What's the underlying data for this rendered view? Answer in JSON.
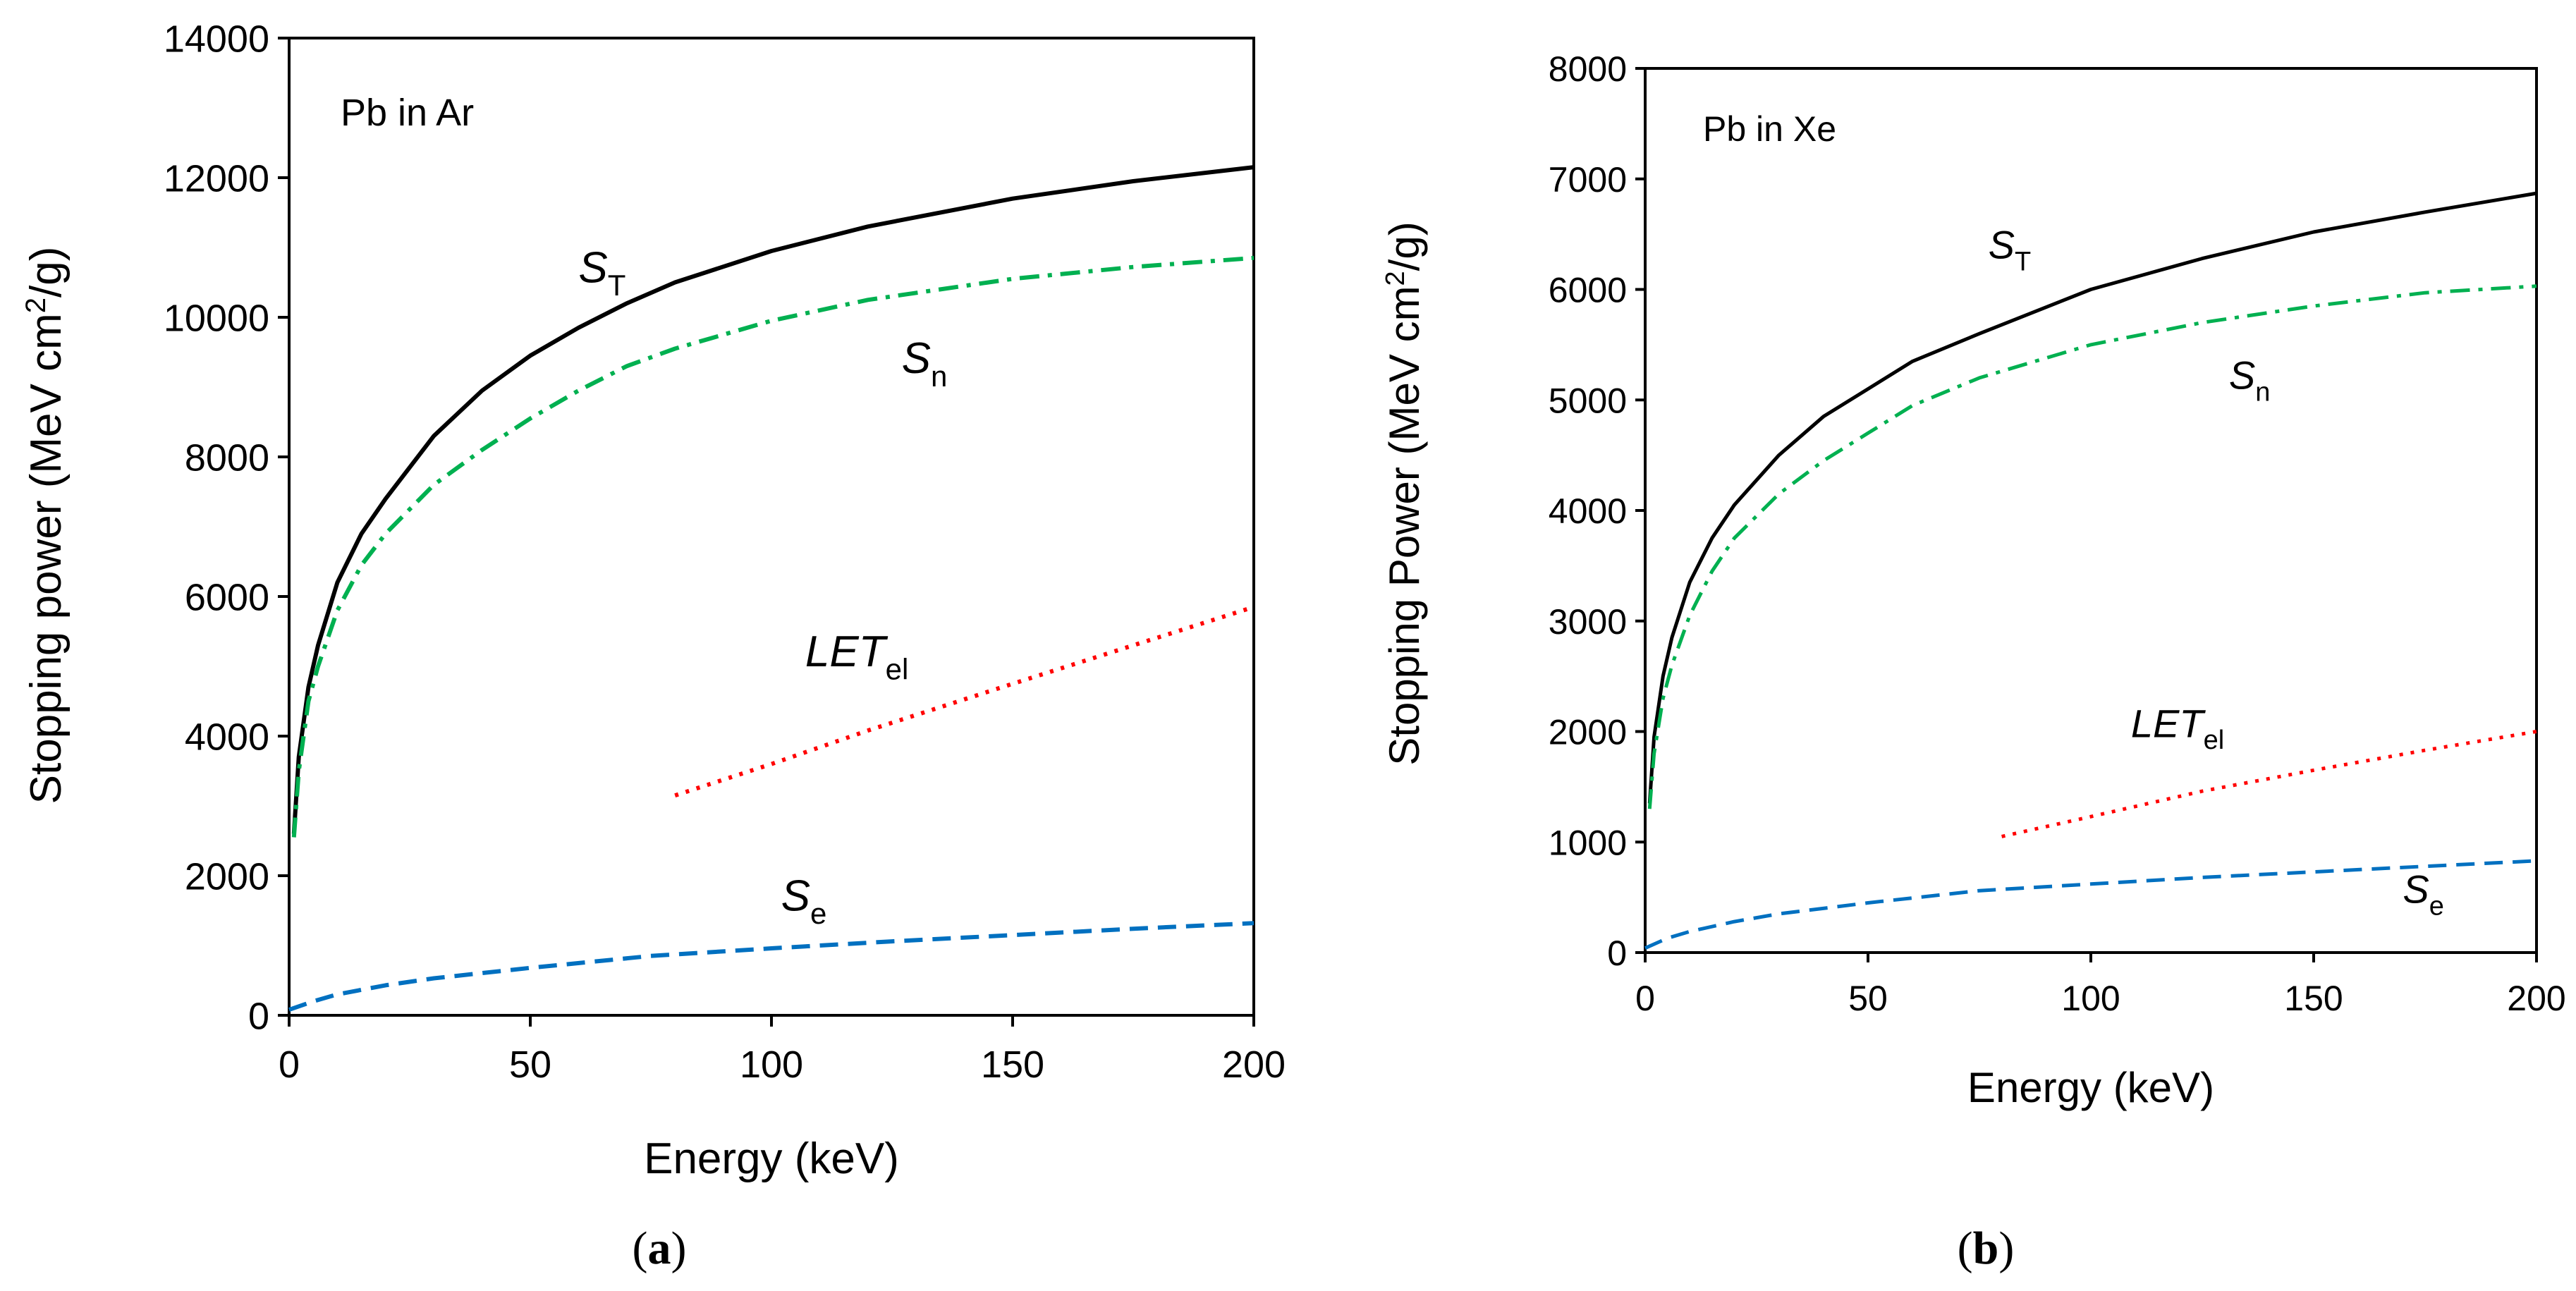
{
  "chart_data": [
    {
      "type": "line",
      "panel_label": "(a)",
      "panel_letter": "a",
      "annotation": "Pb in Ar",
      "xlabel": "Energy (keV)",
      "ylabel": "Stopping power (MeV cm²/g)",
      "ylabel_parts": {
        "before": "Stopping power (MeV cm",
        "sup": "2",
        "after": "/g)"
      },
      "xlim": [
        0,
        200
      ],
      "ylim": [
        0,
        14000
      ],
      "xticks": [
        0,
        50,
        100,
        150,
        200
      ],
      "xtick_labels": [
        "0",
        "50",
        "100",
        "150",
        "200"
      ],
      "yticks": [
        0,
        2000,
        4000,
        6000,
        8000,
        10000,
        12000,
        14000
      ],
      "ytick_labels": [
        "0",
        "2000",
        "4000",
        "6000",
        "8000",
        "10000",
        "12000",
        "14000"
      ],
      "grid": false,
      "series": [
        {
          "name": "ST",
          "label_main": "S",
          "label_sub": "T",
          "label_italic_main": true,
          "color": "#000000",
          "style": "solid",
          "label_at": [
            60,
            10500
          ],
          "x": [
            1,
            2,
            4,
            6,
            10,
            15,
            20,
            30,
            40,
            50,
            60,
            70,
            80,
            100,
            120,
            150,
            175,
            200
          ],
          "y": [
            2600,
            3700,
            4700,
            5300,
            6200,
            6900,
            7400,
            8300,
            8950,
            9450,
            9850,
            10200,
            10500,
            10950,
            11300,
            11700,
            11950,
            12150
          ]
        },
        {
          "name": "Sn",
          "label_main": "S",
          "label_sub": "n",
          "label_italic_main": true,
          "color": "#00b050",
          "style": "dashdot",
          "label_at": [
            127,
            9200
          ],
          "x": [
            1,
            2,
            4,
            6,
            10,
            15,
            20,
            30,
            40,
            50,
            60,
            70,
            80,
            100,
            120,
            150,
            175,
            200
          ],
          "y": [
            2550,
            3500,
            4500,
            5000,
            5800,
            6450,
            6900,
            7600,
            8100,
            8550,
            8950,
            9300,
            9550,
            9950,
            10250,
            10550,
            10720,
            10850
          ]
        },
        {
          "name": "LETel",
          "label_main": "LET",
          "label_sub": "el",
          "label_italic_main": true,
          "color": "#ff0000",
          "style": "dotted",
          "label_at": [
            107,
            5000
          ],
          "x": [
            80,
            100,
            120,
            150,
            175,
            200
          ],
          "y": [
            3150,
            3600,
            4080,
            4750,
            5300,
            5850
          ]
        },
        {
          "name": "Se",
          "label_main": "S",
          "label_sub": "e",
          "label_italic_main": true,
          "color": "#0070c0",
          "style": "dashed",
          "label_at": [
            102,
            1500
          ],
          "x": [
            0,
            5,
            10,
            20,
            30,
            50,
            75,
            100,
            125,
            150,
            175,
            200
          ],
          "y": [
            80,
            200,
            300,
            430,
            530,
            680,
            850,
            960,
            1060,
            1150,
            1240,
            1320
          ]
        }
      ]
    },
    {
      "type": "line",
      "panel_label": "(b)",
      "panel_letter": "b",
      "annotation": "Pb in Xe",
      "xlabel": "Energy (keV)",
      "ylabel": "Stopping Power (MeV cm²/g)",
      "ylabel_parts": {
        "before": "Stopping Power (MeV cm",
        "sup": "2",
        "after": "/g)"
      },
      "xlim": [
        0,
        200
      ],
      "ylim": [
        0,
        8000
      ],
      "xticks": [
        0,
        50,
        100,
        150,
        200
      ],
      "xtick_labels": [
        "0",
        "50",
        "100",
        "150",
        "200"
      ],
      "yticks": [
        0,
        1000,
        2000,
        3000,
        4000,
        5000,
        6000,
        7000,
        8000
      ],
      "ytick_labels": [
        "0",
        "1000",
        "2000",
        "3000",
        "4000",
        "5000",
        "6000",
        "7000",
        "8000"
      ],
      "grid": false,
      "series": [
        {
          "name": "ST",
          "label_main": "S",
          "label_sub": "T",
          "label_italic_main": true,
          "color": "#000000",
          "style": "solid",
          "label_at": [
            77,
            6280
          ],
          "x": [
            1,
            2,
            4,
            6,
            10,
            15,
            20,
            30,
            40,
            50,
            60,
            75,
            100,
            125,
            150,
            175,
            200
          ],
          "y": [
            1350,
            1950,
            2500,
            2850,
            3350,
            3750,
            4050,
            4500,
            4850,
            5100,
            5350,
            5600,
            6000,
            6280,
            6520,
            6700,
            6870
          ]
        },
        {
          "name": "Sn",
          "label_main": "S",
          "label_sub": "n",
          "label_italic_main": true,
          "color": "#00b050",
          "style": "dashdot",
          "label_at": [
            131,
            5100
          ],
          "x": [
            1,
            2,
            4,
            6,
            10,
            15,
            20,
            30,
            40,
            50,
            60,
            75,
            100,
            125,
            150,
            175,
            200
          ],
          "y": [
            1300,
            1800,
            2300,
            2600,
            3050,
            3450,
            3750,
            4150,
            4450,
            4700,
            4950,
            5200,
            5500,
            5700,
            5850,
            5970,
            6030
          ]
        },
        {
          "name": "LETel",
          "label_main": "LET",
          "label_sub": "el",
          "label_italic_main": true,
          "color": "#ff0000",
          "style": "dotted",
          "label_at": [
            109,
            1950
          ],
          "x": [
            80,
            100,
            125,
            150,
            175,
            200
          ],
          "y": [
            1050,
            1230,
            1460,
            1650,
            1830,
            2000
          ]
        },
        {
          "name": "Se",
          "label_main": "S",
          "label_sub": "e",
          "label_italic_main": true,
          "color": "#0070c0",
          "style": "dashed",
          "label_at": [
            170,
            450
          ],
          "x": [
            0,
            5,
            10,
            20,
            30,
            50,
            75,
            100,
            125,
            150,
            175,
            200
          ],
          "y": [
            40,
            130,
            190,
            280,
            350,
            450,
            560,
            620,
            680,
            730,
            780,
            830
          ]
        }
      ]
    }
  ]
}
